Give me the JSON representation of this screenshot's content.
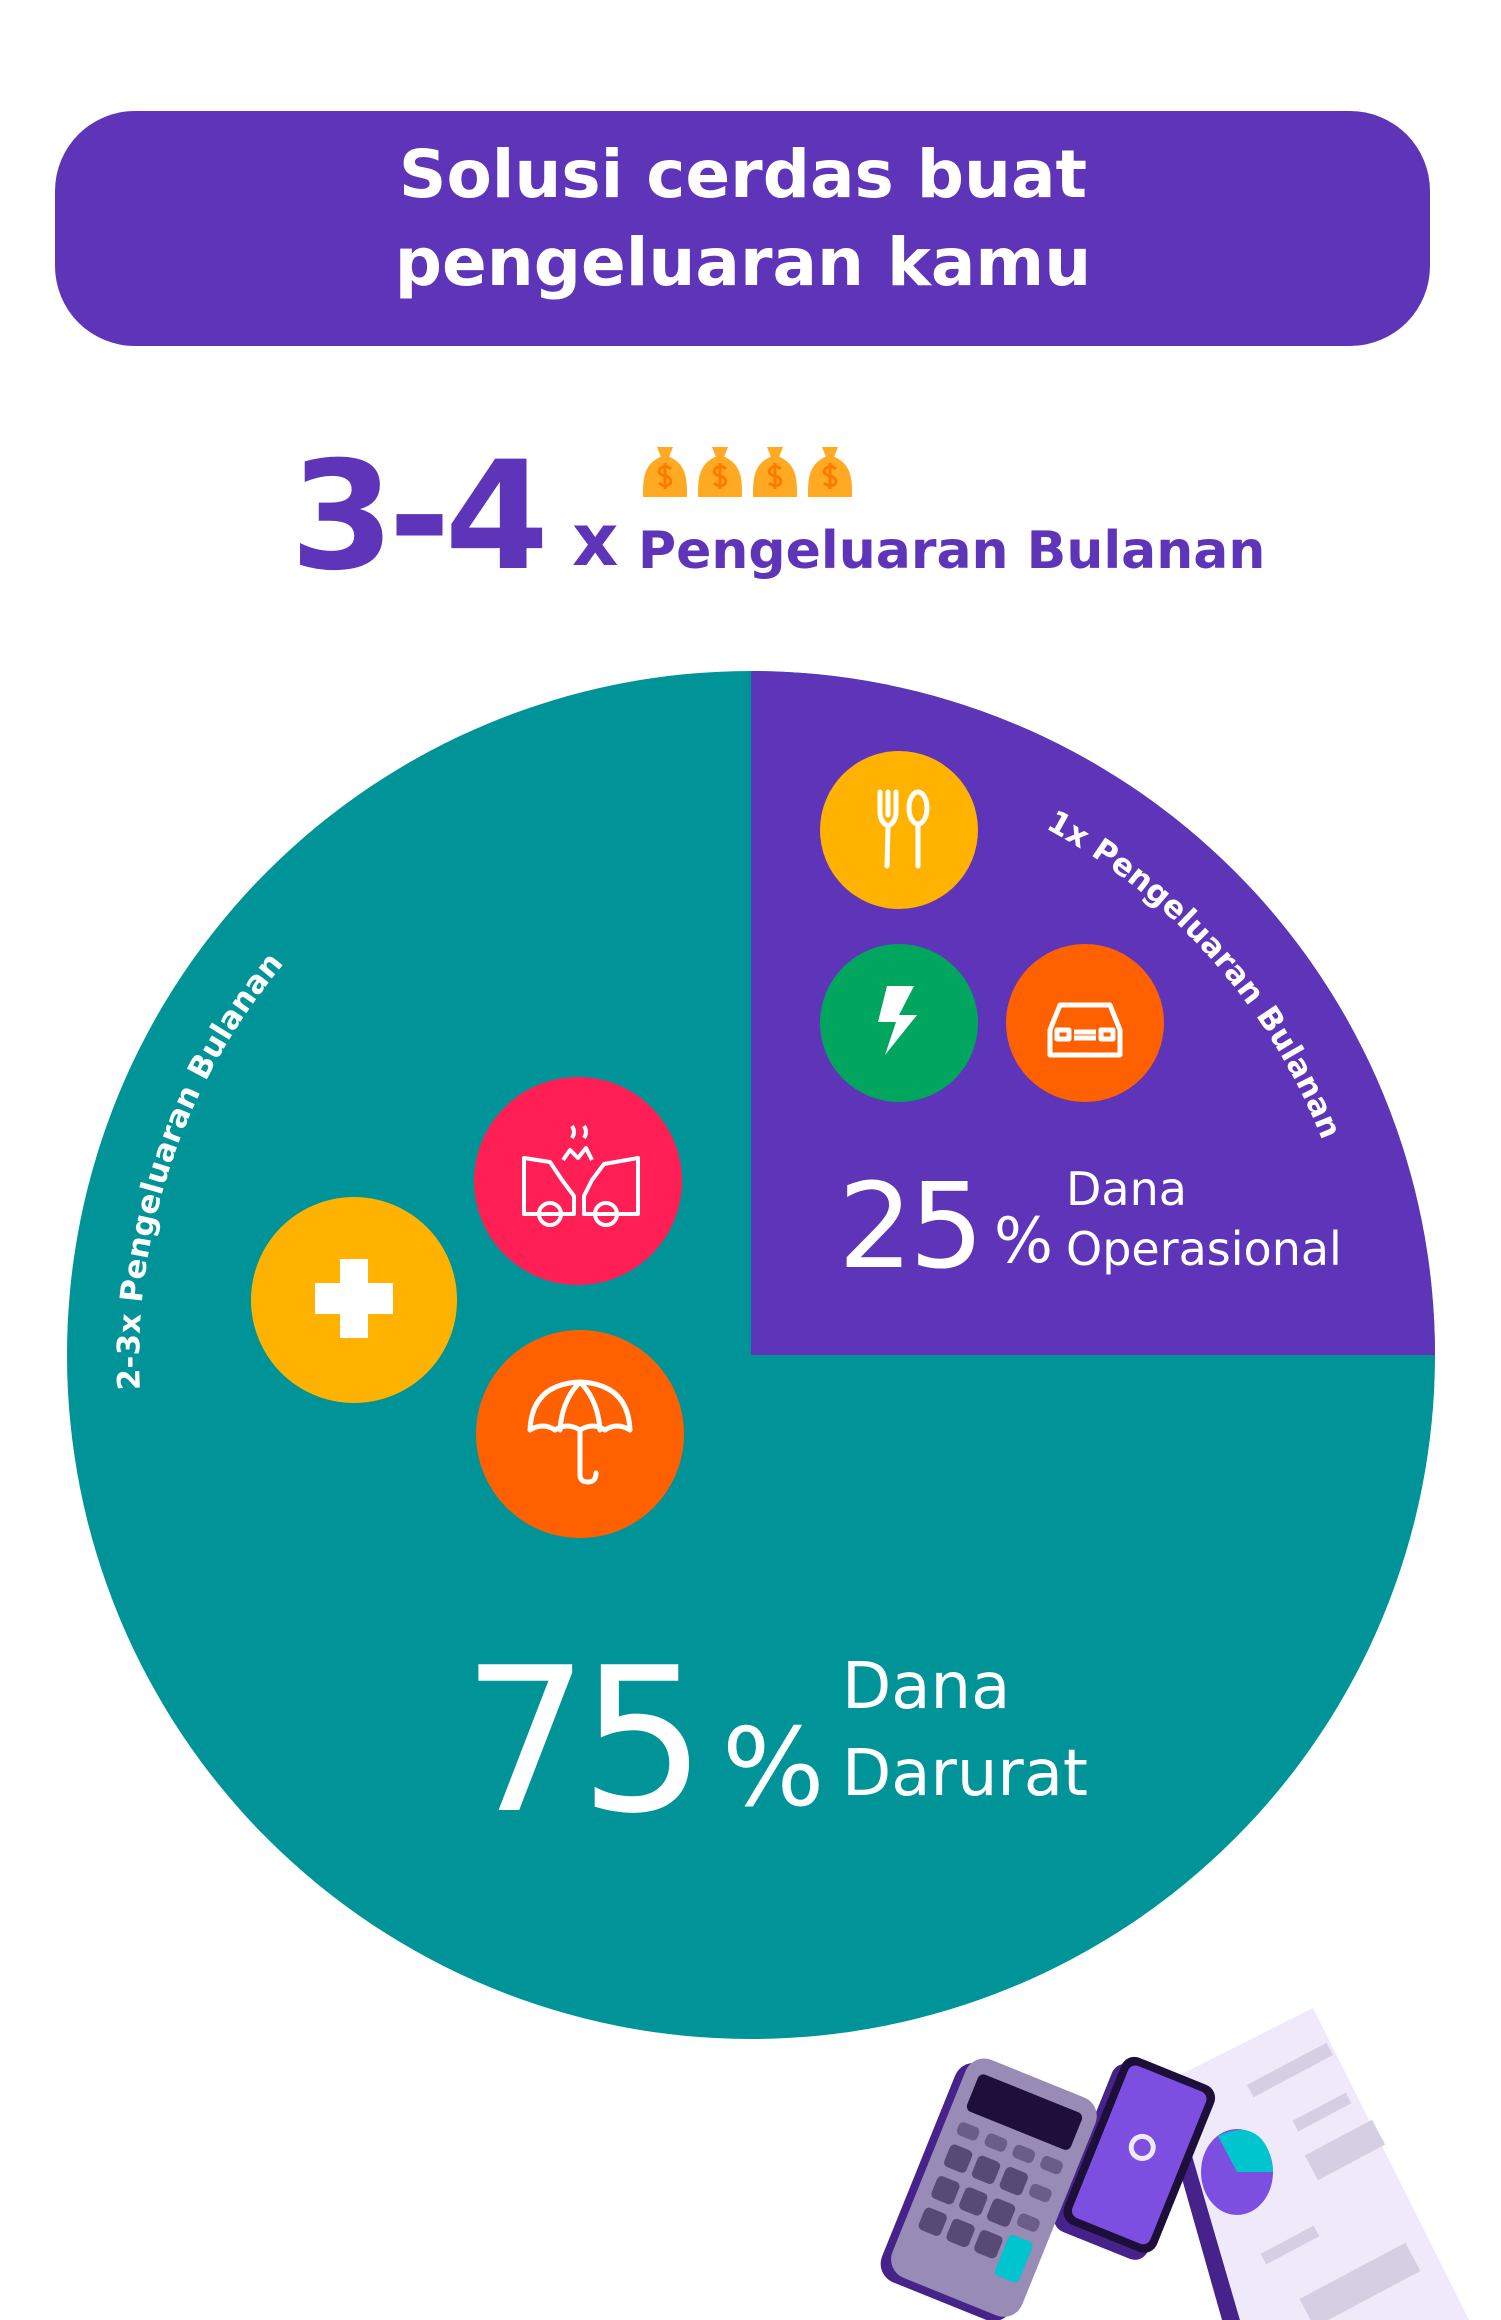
{
  "header": {
    "title_line1": "Solusi cerdas buat",
    "title_line2": "pengeluaran kamu"
  },
  "multiplier": {
    "range": "3-4",
    "times": "x",
    "label": "Pengeluaran Bulanan",
    "icon": "money-bag-icon",
    "icon_count": 4
  },
  "chart_data": {
    "type": "pie",
    "slices": [
      {
        "label": "Dana Darurat",
        "value": 75,
        "display": "75%",
        "caption": "2-3x Pengeluaran Bulanan",
        "color": "#009499",
        "icons": [
          "first-aid-icon",
          "car-crash-icon",
          "umbrella-icon"
        ]
      },
      {
        "label": "Dana Operasional",
        "value": 25,
        "display": "25%",
        "caption": "1x Pengeluaran Bulanan",
        "color": "#5E35B9",
        "icons": [
          "fork-spoon-icon",
          "lightning-icon",
          "car-icon"
        ]
      }
    ]
  },
  "labels": {
    "op_number": "25",
    "op_pct": "%",
    "op_line1": "Dana",
    "op_line2": "Operasional",
    "op_arc": "1x Pengeluaran Bulanan",
    "em_number": "75",
    "em_pct": "%",
    "em_line1": "Dana",
    "em_line2": "Darurat",
    "em_arc": "2-3x Pengeluaran Bulanan"
  },
  "colors": {
    "purple": "#5E35B9",
    "teal": "#009499",
    "yellow": "#FFB300",
    "green": "#00A65D",
    "orange": "#FF6000",
    "red": "#FF1F55"
  }
}
